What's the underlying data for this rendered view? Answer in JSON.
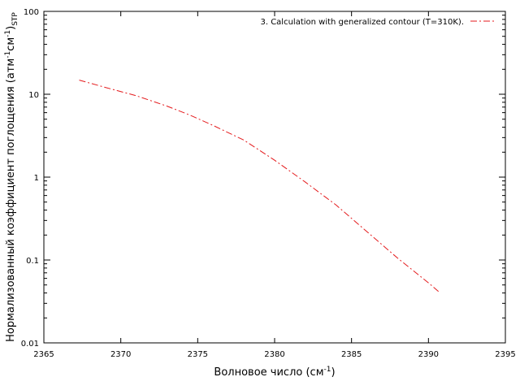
{
  "chart_data": {
    "type": "line",
    "x_scale": "linear",
    "y_scale": "log",
    "xlim": [
      2365,
      2395
    ],
    "ylim": [
      0.01,
      100
    ],
    "x_ticks": [
      2365,
      2370,
      2375,
      2380,
      2385,
      2390,
      2395
    ],
    "x_tick_labels": [
      "2365",
      "2370",
      "2375",
      "2380",
      "2385",
      "2390",
      "2395"
    ],
    "y_ticks": [
      0.01,
      0.1,
      1,
      10,
      100
    ],
    "y_tick_labels": [
      "0.01",
      "0.1",
      "1",
      "10",
      "100"
    ],
    "xlabel": {
      "main": "Волновое число (см",
      "sup": "-1",
      "close": ")"
    },
    "ylabel": {
      "part1": "Нормализованный коэффициент поглощения (атм",
      "sup1": "-1",
      "part2": "см",
      "sup2": "-1",
      "part3": ")",
      "sub": "STP"
    },
    "grid": false,
    "legend_position": "top-right",
    "series": [
      {
        "name": "3. Calculation with generalized contour (T=310K).",
        "color": "#e41a1c",
        "line_style": "dash-dot",
        "x": [
          2367.3,
          2369,
          2371,
          2373,
          2374.5,
          2376,
          2378,
          2380,
          2382,
          2384,
          2386,
          2388,
          2390,
          2390.7
        ],
        "y": [
          14.8,
          12.1,
          9.6,
          7.2,
          5.6,
          4.2,
          2.8,
          1.6,
          0.87,
          0.46,
          0.22,
          0.105,
          0.053,
          0.041
        ]
      }
    ]
  }
}
